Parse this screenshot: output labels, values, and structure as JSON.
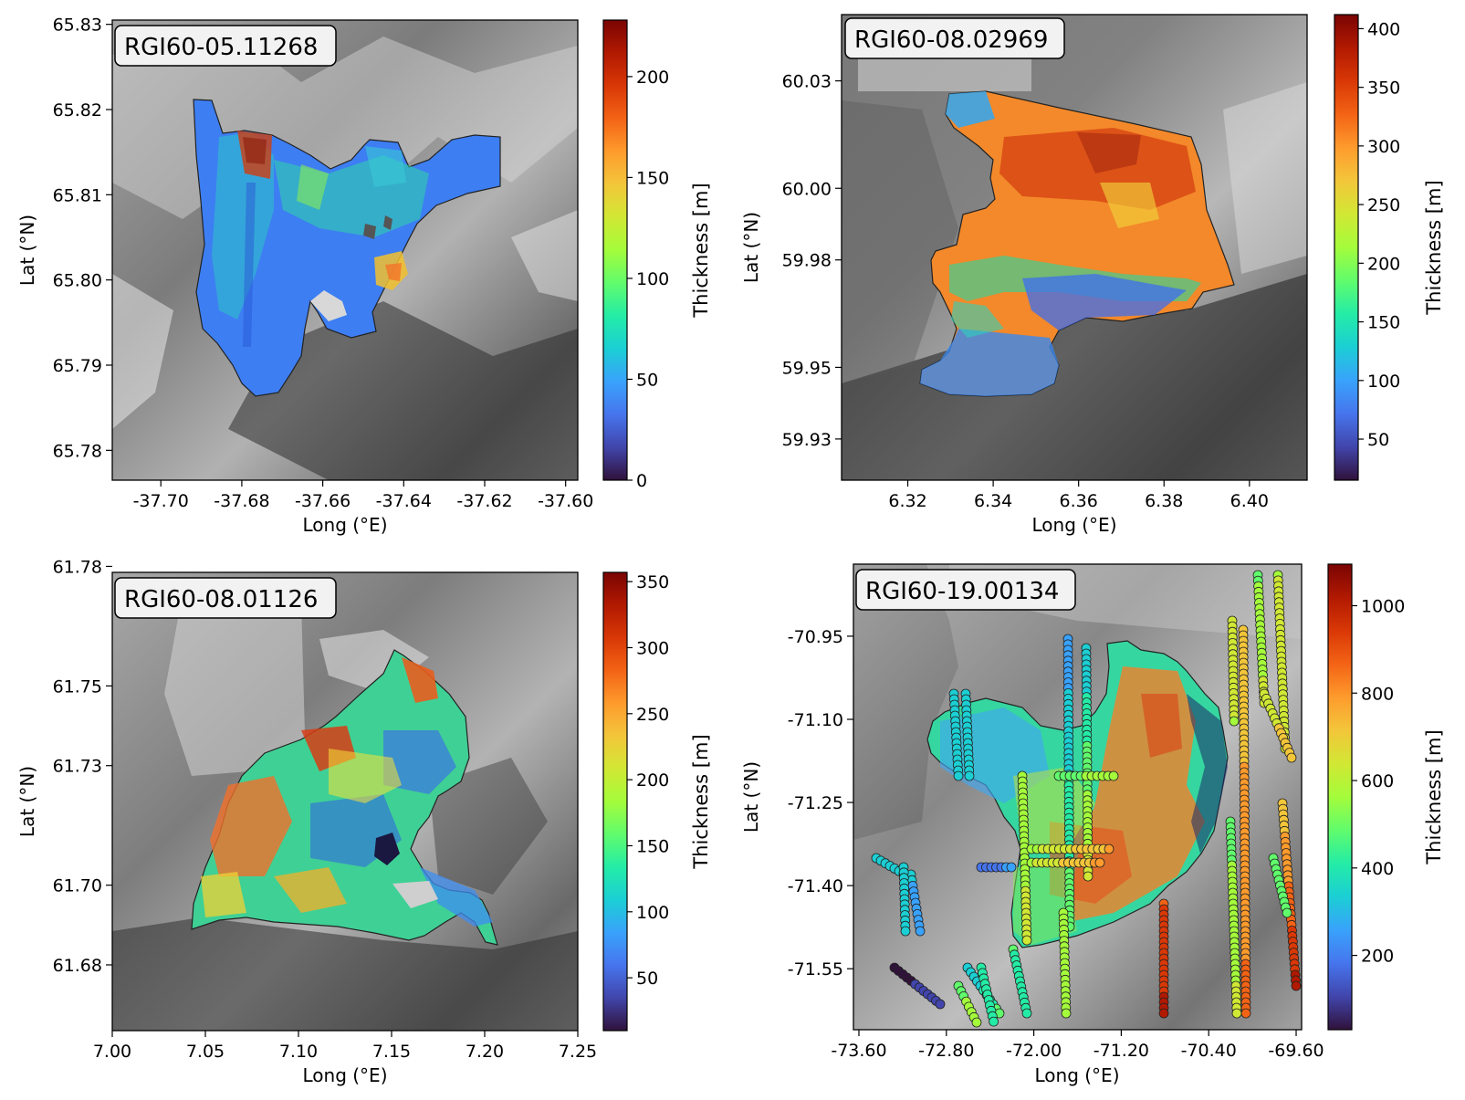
{
  "chart_data": [
    {
      "type": "heatmap",
      "title": "RGI60-05.11268",
      "xlabel": "Long ($^{\\circ}$E)",
      "ylabel": "Lat ($^{\\circ}$N)",
      "xlabel_display": "Long (°E)",
      "ylabel_display": "Lat (°N)",
      "xlim": [
        -37.712,
        -37.597
      ],
      "ylim": [
        65.7765,
        65.8305
      ],
      "xticks": [
        -37.7,
        -37.68,
        -37.66,
        -37.64,
        -37.62,
        -37.6
      ],
      "xtick_labels": [
        "-37.70",
        "-37.68",
        "-37.66",
        "-37.64",
        "-37.62",
        "-37.60"
      ],
      "yticks": [
        65.78,
        65.79,
        65.8,
        65.81,
        65.82,
        65.83
      ],
      "ytick_labels": [
        "65.78",
        "65.79",
        "65.80",
        "65.81",
        "65.82",
        "65.83"
      ],
      "colorbar": {
        "label": "Thickness [m]",
        "cmap": "turbo",
        "range": [
          0,
          228
        ],
        "ticks": [
          0,
          50,
          100,
          150,
          200
        ],
        "tick_labels": [
          "0",
          "50",
          "100",
          "150",
          "200"
        ]
      },
      "typical_thickness": 55,
      "max_thickness": 215,
      "grid": false
    },
    {
      "type": "heatmap",
      "title": "RGI60-08.02969",
      "xlabel_display": "Long (°E)",
      "ylabel_display": "Lat (°N)",
      "xlim": [
        6.3045,
        6.4135
      ],
      "ylim": [
        59.9185,
        60.0485
      ],
      "xticks": [
        6.32,
        6.34,
        6.36,
        6.38,
        6.4
      ],
      "xtick_labels": [
        "6.32",
        "6.34",
        "6.36",
        "6.38",
        "6.40"
      ],
      "yticks": [
        59.93,
        59.95,
        59.98,
        60.0,
        60.03
      ],
      "ytick_labels": [
        "59.93",
        "59.95",
        "59.98",
        "60.00",
        "60.03"
      ],
      "colorbar": {
        "label": "Thickness [m]",
        "cmap": "turbo",
        "range": [
          15,
          412
        ],
        "ticks": [
          50,
          100,
          150,
          200,
          250,
          300,
          350,
          400
        ],
        "tick_labels": [
          "50",
          "100",
          "150",
          "200",
          "250",
          "300",
          "350",
          "400"
        ]
      },
      "typical_thickness": 300,
      "max_thickness": 380,
      "grid": false
    },
    {
      "type": "heatmap",
      "title": "RGI60-08.01126",
      "xlabel_display": "Long (°E)",
      "ylabel_display": "Lat (°N)",
      "xlim": [
        7.0,
        7.25
      ],
      "ylim": [
        61.6635,
        61.7785
      ],
      "xticks": [
        7.0,
        7.05,
        7.1,
        7.15,
        7.2,
        7.25
      ],
      "xtick_labels": [
        "7.00",
        "7.05",
        "7.10",
        "7.15",
        "7.20",
        "7.25"
      ],
      "yticks": [
        61.68,
        61.7,
        61.73,
        61.75,
        61.78
      ],
      "ytick_labels": [
        "61.68",
        "61.70",
        "61.73",
        "61.75",
        "61.78"
      ],
      "colorbar": {
        "label": "Thickness [m]",
        "cmap": "turbo",
        "range": [
          10,
          357
        ],
        "ticks": [
          50,
          100,
          150,
          200,
          250,
          300,
          350
        ],
        "tick_labels": [
          "50",
          "100",
          "150",
          "200",
          "250",
          "300",
          "350"
        ]
      },
      "typical_thickness": 170,
      "max_thickness": 320,
      "grid": false
    },
    {
      "type": "heatmap",
      "title": "RGI60-19.00134",
      "xlabel_display": "Long (°E)",
      "ylabel_display": "Lat (°N)",
      "xlim": [
        -73.65,
        -69.55
      ],
      "ylim": [
        -71.66,
        -70.82
      ],
      "xticks": [
        -73.6,
        -72.8,
        -72.0,
        -71.2,
        -70.4,
        -69.6
      ],
      "xtick_labels": [
        "-73.60",
        "-72.80",
        "-72.00",
        "-71.20",
        "-70.40",
        "-69.60"
      ],
      "yticks": [
        -70.95,
        -71.1,
        -71.25,
        -71.4,
        -71.55
      ],
      "ytick_labels": [
        "-70.95",
        "-71.10",
        "-71.25",
        "-71.40",
        "-71.55"
      ],
      "colorbar": {
        "label": "Thickness [m]",
        "cmap": "turbo",
        "range": [
          30,
          1095
        ],
        "ticks": [
          200,
          400,
          600,
          800,
          1000
        ],
        "tick_labels": [
          "200",
          "400",
          "600",
          "800",
          "1000"
        ]
      },
      "typical_thickness": 600,
      "max_thickness": 900,
      "overlay": "point measurements of thickness as circles along flight lines",
      "grid": false
    }
  ]
}
